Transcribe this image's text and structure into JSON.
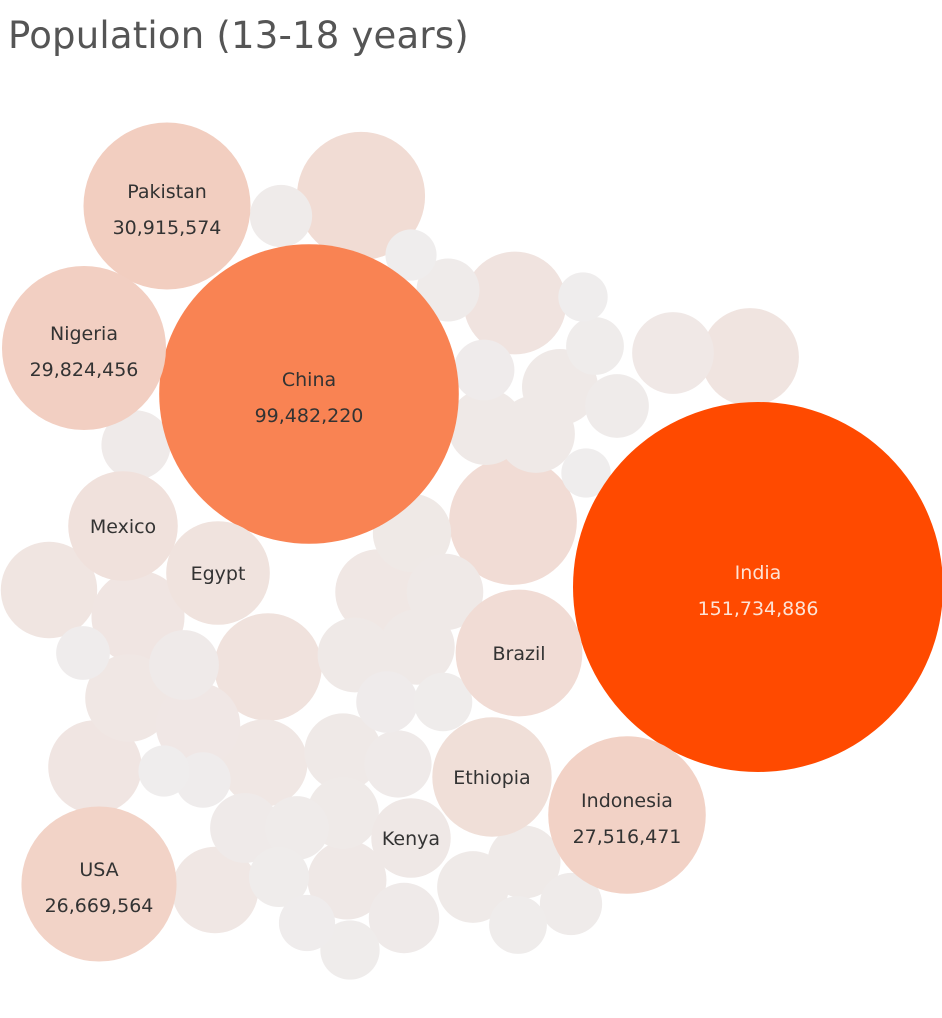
{
  "chart_data": {
    "type": "bubble",
    "title": "Population (13-18 years)",
    "measure": "Population (13-18 years)",
    "color_scale": {
      "low": "#efeded",
      "high": "#ff4a00"
    },
    "labeled_points": [
      {
        "name": "India",
        "value": 151734886,
        "value_label": "151,734,886"
      },
      {
        "name": "China",
        "value": 99482220,
        "value_label": "99,482,220"
      },
      {
        "name": "Pakistan",
        "value": 30915574,
        "value_label": "30,915,574"
      },
      {
        "name": "Nigeria",
        "value": 29824456,
        "value_label": "29,824,456"
      },
      {
        "name": "Indonesia",
        "value": 27516471,
        "value_label": "27,516,471"
      },
      {
        "name": "USA",
        "value": 26669564,
        "value_label": "26,669,564"
      },
      {
        "name": "Brazil",
        "value": 17800000,
        "value_label": ""
      },
      {
        "name": "Ethiopia",
        "value": 15800000,
        "value_label": ""
      },
      {
        "name": "Mexico",
        "value": 13300000,
        "value_label": ""
      },
      {
        "name": "Egypt",
        "value": 11900000,
        "value_label": ""
      },
      {
        "name": "Kenya",
        "value": 7000000,
        "value_label": ""
      }
    ],
    "unlabeled_values": [
      18200000,
      18100000,
      12800000,
      11700000,
      10600000,
      10300000,
      9700000,
      9600000,
      8500000,
      8400000,
      8300000,
      8100000,
      7900000,
      7400000,
      6900000,
      6800000,
      6700000,
      6600000,
      6500000,
      6400000,
      6400000,
      6300000,
      6200000,
      5900000,
      5700000,
      5700000,
      5500000,
      5400000,
      5400000,
      5300000,
      5000000,
      4500000,
      4500000,
      4400000,
      4300000,
      4300000,
      4200000,
      4100000,
      4000000,
      3900000,
      3800000,
      3700000,
      3700000,
      3500000,
      3400000,
      3200000,
      2900000,
      2900000,
      2700000,
      2700000
    ]
  }
}
